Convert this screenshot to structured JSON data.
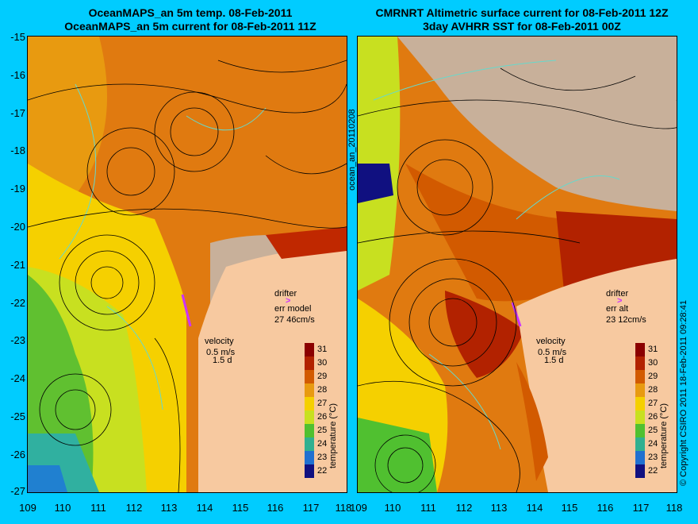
{
  "left_panel": {
    "title_line1": "OceanMAPS_an 5m temp. 08-Feb-2011",
    "title_line2": "OceanMAPS_an 5m current for 08-Feb-2011 11Z",
    "drifter_label": "drifter",
    "err_label": "err model",
    "err_value": "27 46cm/s",
    "velocity_label": "velocity",
    "velocity_scale": "0.5 m/s",
    "velocity_time": "1.5 d"
  },
  "right_panel": {
    "title_line1": "CMRNRT Altimetric surface current for 08-Feb-2011 12Z",
    "title_line2": "3day AVHRR SST for 08-Feb-2011 00Z",
    "drifter_label": "drifter",
    "err_label": "err alt",
    "err_value": "23 12cm/s",
    "velocity_label": "velocity",
    "velocity_scale": "0.5 m/s",
    "velocity_time": "1.5 d"
  },
  "side_labels": {
    "middle": "ocean_an_20110208",
    "right": "© Copyright CSIRO 2011   18-Feb-2011 09:28:41"
  },
  "axes": {
    "lat_ticks": [
      "-15",
      "-16",
      "-17",
      "-18",
      "-19",
      "-20",
      "-21",
      "-22",
      "-23",
      "-24",
      "-25",
      "-26",
      "-27"
    ],
    "lon_ticks": [
      "109",
      "110",
      "111",
      "112",
      "113",
      "114",
      "115",
      "116",
      "117",
      "118"
    ]
  },
  "colorbar": {
    "title": "temperature (°C)",
    "labels": [
      "31",
      "30",
      "29",
      "28",
      "27",
      "26",
      "25",
      "24",
      "23",
      "22"
    ],
    "colors": [
      "#8b0000",
      "#b22200",
      "#d25a00",
      "#e89a10",
      "#f5d000",
      "#c8e020",
      "#50c030",
      "#30b090",
      "#2070d0",
      "#101080"
    ]
  },
  "colors": {
    "background": "#00ccff",
    "land": "#f7c9a0",
    "cloud": "#c8b09a",
    "coast": "#66d9cc",
    "drifter": "#cc33ff"
  }
}
